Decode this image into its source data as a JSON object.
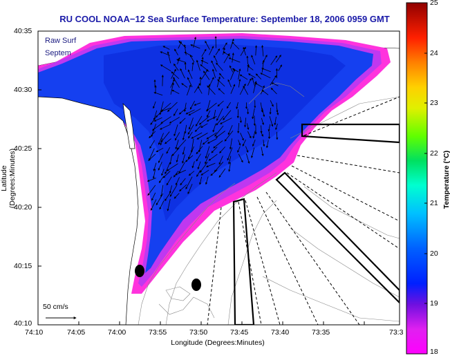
{
  "map": {
    "title": "RU COOL  NOAA−12  Sea Surface Temperature:  September 18, 2006 0959 GMT",
    "overlay_line1": "Raw Surf",
    "overlay_line2": "Septem",
    "xlabel": "Longitude (Degrees:Minutes)",
    "ylabel": "Latitude (Degrees:Minutes)",
    "x_ticks": [
      "74:10",
      "74:05",
      "74:00",
      "73:55",
      "73:50",
      "73:45",
      "73:40",
      "73:35",
      "73:3"
    ],
    "y_ticks": [
      "40:35",
      "40:30",
      "40:25",
      "40:20",
      "40:15",
      "40:10"
    ],
    "scale_label": "50 cm/s"
  },
  "colorbar": {
    "title": "Temperature (°C)",
    "ticks": [
      "25",
      "24",
      "23",
      "22",
      "21",
      "20",
      "19",
      "18"
    ],
    "min": 18,
    "max": 25
  }
}
